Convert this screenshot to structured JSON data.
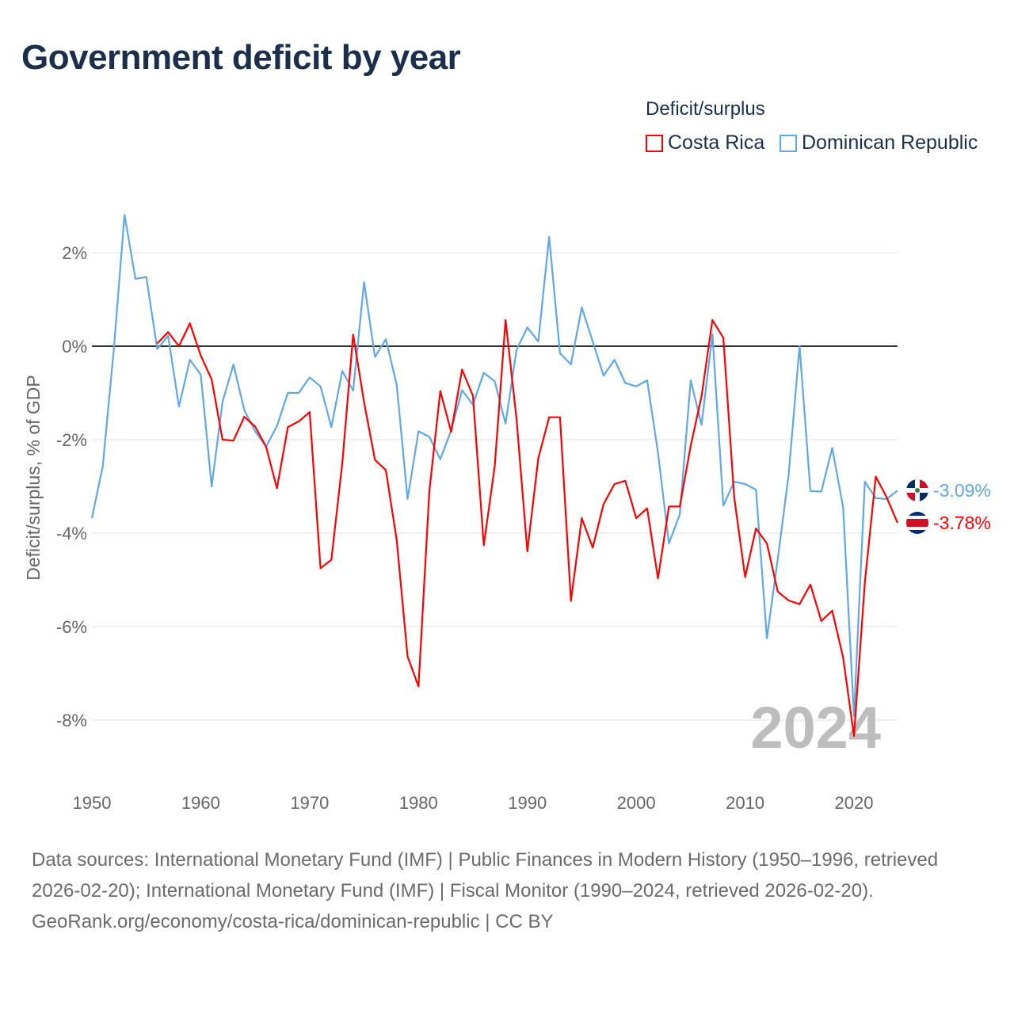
{
  "title": "Government deficit by year",
  "legend": {
    "title": "Deficit/surplus",
    "items": [
      {
        "label": "Costa Rica",
        "color": "#ff0000"
      },
      {
        "label": "Dominican Republic",
        "color": "#5fa8e8"
      }
    ]
  },
  "watermark_year": "2024",
  "end_labels": {
    "dominican_republic": "-3.09%",
    "costa_rica": "-3.78%"
  },
  "footer": {
    "sources": "Data sources: International Monetary Fund (IMF) | Public Finances in Modern History (1950–1996, retrieved 2026-02-20); International Monetary Fund (IMF) | Fiscal Monitor (1990–2024, retrieved 2026-02-20).",
    "credit": "GeoRank.org/economy/costa-rica/dominican-republic | CC BY"
  },
  "chart_data": {
    "type": "line",
    "title": "Government deficit by year",
    "xlabel": "",
    "ylabel": "Deficit/surplus, % of GDP",
    "xlim": [
      1950,
      2024
    ],
    "ylim": [
      -9.2,
      2.9
    ],
    "x_ticks": [
      "1950",
      "1960",
      "1970",
      "1980",
      "1990",
      "2000",
      "2010",
      "2020"
    ],
    "y_ticks": [
      {
        "value": 2,
        "label": "2%"
      },
      {
        "value": 0,
        "label": "0%"
      },
      {
        "value": -2,
        "label": "-2%"
      },
      {
        "value": -4,
        "label": "-4%"
      },
      {
        "value": -6,
        "label": "-6%"
      },
      {
        "value": -8,
        "label": "-8%"
      }
    ],
    "grid": true,
    "legend_position": "top-right",
    "series": [
      {
        "name": "Dominican Republic",
        "color": "#5fa8e8",
        "start_year": 1950,
        "values": [
          -3.68,
          -2.57,
          -0.1,
          2.81,
          1.44,
          1.48,
          -0.06,
          0.22,
          -1.29,
          -0.29,
          -0.61,
          -3.0,
          -1.19,
          -0.39,
          -1.37,
          -1.82,
          -2.15,
          -1.71,
          -1.0,
          -1.0,
          -0.67,
          -0.86,
          -1.73,
          -0.53,
          -0.95,
          1.37,
          -0.23,
          0.15,
          -0.83,
          -3.27,
          -1.82,
          -1.94,
          -2.42,
          -1.8,
          -0.94,
          -1.25,
          -0.57,
          -0.75,
          -1.66,
          -0.08,
          0.4,
          0.1,
          2.34,
          -0.15,
          -0.39,
          0.83,
          0.1,
          -0.63,
          -0.29,
          -0.79,
          -0.86,
          -0.73,
          -2.28,
          -4.22,
          -3.6,
          -0.73,
          -1.68,
          0.26,
          -3.41,
          -2.9,
          -2.95,
          -3.07,
          -6.25,
          -4.55,
          -2.75,
          0.0,
          -3.1,
          -3.11,
          -2.18,
          -3.45,
          -7.92,
          -2.9,
          -3.25,
          -3.27,
          -3.09
        ]
      },
      {
        "name": "Costa Rica",
        "color": "#ff0000",
        "start_year": 1956,
        "values": [
          0.06,
          0.3,
          0.0,
          0.49,
          -0.2,
          -0.71,
          -2.0,
          -2.02,
          -1.51,
          -1.72,
          -2.15,
          -3.04,
          -1.73,
          -1.61,
          -1.41,
          -4.75,
          -4.57,
          -2.5,
          0.25,
          -1.2,
          -2.43,
          -2.65,
          -4.15,
          -6.64,
          -7.28,
          -3.1,
          -0.96,
          -1.83,
          -0.5,
          -1.06,
          -4.26,
          -2.57,
          0.56,
          -1.55,
          -4.39,
          -2.4,
          -1.52,
          -1.52,
          -5.45,
          -3.68,
          -4.31,
          -3.38,
          -2.95,
          -2.88,
          -3.68,
          -3.47,
          -4.97,
          -3.43,
          -3.43,
          -2.13,
          -1.07,
          0.56,
          0.18,
          -3.23,
          -4.94,
          -3.9,
          -4.22,
          -5.25,
          -5.44,
          -5.52,
          -5.1,
          -5.88,
          -5.66,
          -6.66,
          -8.34,
          -5.06,
          -2.79,
          -3.23,
          -3.78
        ]
      }
    ]
  }
}
